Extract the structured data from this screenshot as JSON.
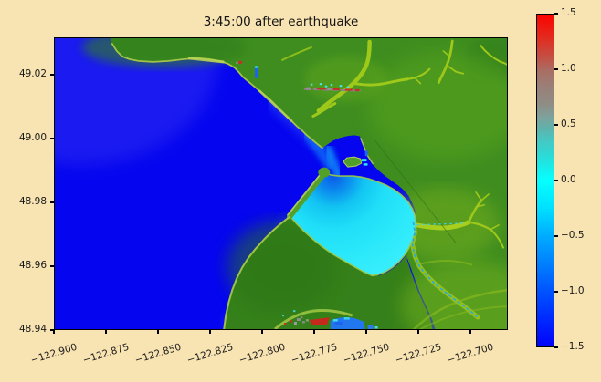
{
  "figure": {
    "title": "3:45:00 after earthquake"
  },
  "axes": {
    "x_tick_labels": [
      "−122.900",
      "−122.875",
      "−122.850",
      "−122.825",
      "−122.800",
      "−122.775",
      "−122.750",
      "−122.725",
      "−122.700"
    ],
    "y_tick_labels": [
      "49.02",
      "49.00",
      "48.98",
      "48.96",
      "48.94"
    ]
  },
  "colorbar": {
    "tick_labels": [
      "1.5",
      "1.0",
      "0.5",
      "0.0",
      "−0.5",
      "−1.0",
      "−1.5"
    ],
    "min": -1.5,
    "max": 1.5
  },
  "palette": {
    "background": "#f8e3b2",
    "deep_water": "#0505ef",
    "nearshore_water": "#0d6cf6",
    "shallow_bay": "#1fdef7",
    "land": "#3f8d1f",
    "land_dark": "#35801a",
    "valley_green": "#9ec81a",
    "shore_sand": "#a9c847",
    "wave_red": "#c33426",
    "wave_gray": "#8f7f8d",
    "colorbar_top": "#fb0300",
    "colorbar_zero": "#06ffff",
    "colorbar_bottom": "#0203f8"
  },
  "chart_data": {
    "type": "heatmap",
    "title": "3:45:00 after earthquake",
    "xlabel": "",
    "ylabel": "",
    "x_ticks": [
      -122.9,
      -122.875,
      -122.85,
      -122.825,
      -122.8,
      -122.775,
      -122.75,
      -122.725,
      -122.7
    ],
    "y_ticks": [
      49.02,
      49.0,
      48.98,
      48.96,
      48.94
    ],
    "x_range": [
      -122.9,
      -122.682
    ],
    "y_range": [
      48.94,
      49.032
    ],
    "value_range": [
      -1.5,
      1.5
    ],
    "colorbar_ticks": [
      1.5,
      1.0,
      0.5,
      0.0,
      -0.5,
      -1.0,
      -1.5
    ],
    "grid": false,
    "legend_position": "none",
    "regions": [
      {
        "name": "open-strait-deep-water",
        "approx_value": -1.5,
        "color": "#0505ef"
      },
      {
        "name": "nearshore-shelf-water",
        "approx_value": -0.8,
        "color": "#0d6cf6"
      },
      {
        "name": "harbor-entrance-channel",
        "approx_value": -1.0,
        "color": "#0b57e8"
      },
      {
        "name": "drayton-harbor-shallow",
        "approx_value": 0.0,
        "color": "#1fdef7"
      },
      {
        "name": "upland-green-terrain",
        "color": "#3f8d1f"
      },
      {
        "name": "river-valley-lowland",
        "color": "#9ec81a"
      },
      {
        "name": "waterfront-wave-runup",
        "approx_value": 1.4,
        "color": "#c33426"
      },
      {
        "name": "birch-bay-inundation",
        "approx_value": 1.2,
        "color": "#c5291c"
      }
    ]
  }
}
